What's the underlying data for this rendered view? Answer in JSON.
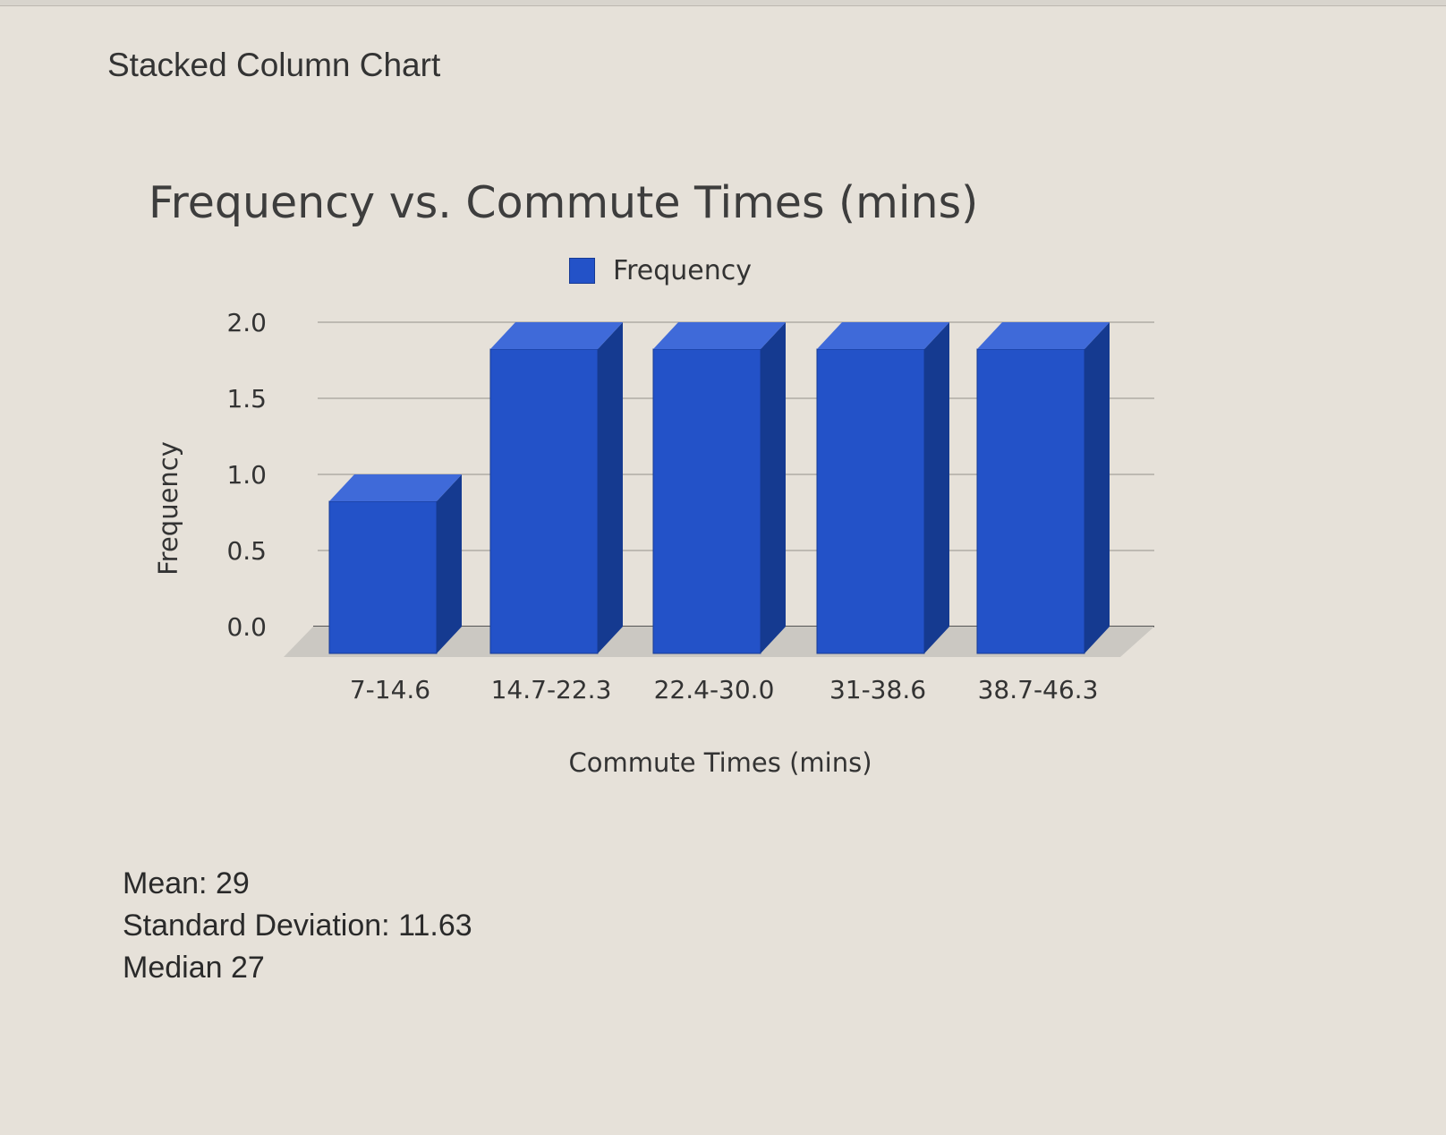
{
  "page": {
    "section_title": "Stacked Column Chart"
  },
  "chart_data": {
    "type": "bar",
    "title": "Frequency vs. Commute Times (mins)",
    "xlabel": "Commute Times (mins)",
    "ylabel": "Frequency",
    "categories": [
      "7-14.6",
      "14.7-22.3",
      "22.4-30.0",
      "31-38.6",
      "38.7-46.3"
    ],
    "series": [
      {
        "name": "Frequency",
        "values": [
          1,
          2,
          2,
          2,
          2
        ]
      }
    ],
    "ylim": [
      0,
      2
    ],
    "yticks": [
      "2.0",
      "1.5",
      "1.0",
      "0.5",
      "0.0"
    ],
    "ytick_values": [
      2,
      1.5,
      1,
      0.5,
      0
    ],
    "grid": true,
    "legend_position": "top",
    "colors": {
      "bar_front": "#2352c8",
      "bar_side": "#153a90",
      "bar_top": "#3f6ad9",
      "grid": "#bdb9b2",
      "floor": "#cbc8c2"
    }
  },
  "stats": {
    "mean_label": "Mean:",
    "mean_value": "29",
    "std_label": "Standard Deviation:",
    "std_value": "11.63",
    "median_label": "Median",
    "median_value": "27"
  }
}
